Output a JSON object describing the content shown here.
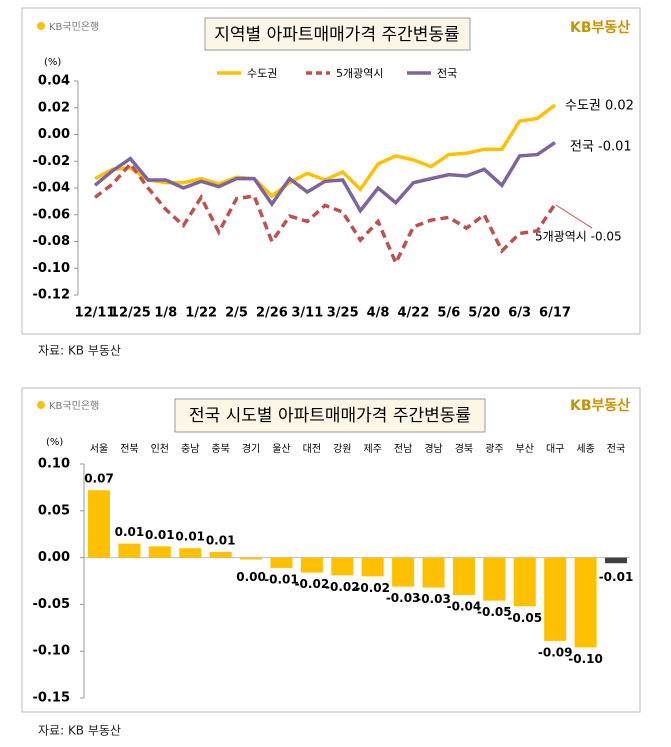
{
  "chart_data": [
    {
      "type": "line",
      "title": "지역별 아파트매매가격 주간변동률",
      "logo": "KB국민은행",
      "brand": "KB부동산",
      "y_unit": "(%)",
      "source": "자료: KB 부동산",
      "categories": [
        "12/11",
        null,
        "12/25",
        null,
        "1/8",
        null,
        "1/22",
        null,
        "2/5",
        null,
        "2/26",
        null,
        "3/11",
        null,
        "3/25",
        null,
        "4/8",
        null,
        "4/22",
        null,
        "5/6",
        null,
        "5/20",
        null,
        "6/3",
        null,
        "6/17"
      ],
      "series": [
        {
          "name": "수도권",
          "color": "#FFC000",
          "dash": false,
          "end_label": "수도권 0.02",
          "end_label_color": "#000000",
          "values": [
            -0.033,
            -0.026,
            -0.025,
            -0.034,
            -0.036,
            -0.036,
            -0.033,
            -0.037,
            -0.032,
            -0.033,
            -0.046,
            -0.036,
            -0.029,
            -0.034,
            -0.028,
            -0.041,
            -0.022,
            -0.016,
            -0.019,
            -0.024,
            -0.015,
            -0.014,
            -0.011,
            -0.011,
            0.01,
            0.012,
            0.022
          ]
        },
        {
          "name": "5개광역시",
          "color": "#C0504D",
          "dash": true,
          "end_label": "5개광역시 -0.05",
          "end_label_color": "#000000",
          "values": [
            -0.047,
            -0.037,
            -0.022,
            -0.04,
            -0.056,
            -0.068,
            -0.047,
            -0.073,
            -0.048,
            -0.046,
            -0.08,
            -0.061,
            -0.065,
            -0.053,
            -0.058,
            -0.079,
            -0.065,
            -0.096,
            -0.069,
            -0.064,
            -0.062,
            -0.07,
            -0.06,
            -0.087,
            -0.074,
            -0.072,
            -0.052
          ]
        },
        {
          "name": "전국",
          "color": "#7E649E",
          "dash": false,
          "end_label": "전국 -0.01",
          "end_label_color": "#7E649E",
          "values": [
            -0.038,
            -0.027,
            -0.018,
            -0.034,
            -0.034,
            -0.04,
            -0.035,
            -0.039,
            -0.033,
            -0.033,
            -0.052,
            -0.033,
            -0.043,
            -0.035,
            -0.034,
            -0.057,
            -0.04,
            -0.051,
            -0.036,
            -0.033,
            -0.03,
            -0.031,
            -0.026,
            -0.038,
            -0.016,
            -0.015,
            -0.006
          ]
        }
      ],
      "ylim": [
        -0.12,
        0.04
      ],
      "yticks": [
        {
          "value": 0.04,
          "label": "0.04"
        },
        {
          "value": 0.02,
          "label": "0.02"
        },
        {
          "value": 0,
          "label": "0.00"
        },
        {
          "value": -0.02,
          "label": "-0.02"
        },
        {
          "value": -0.04,
          "label": "-0.04"
        },
        {
          "value": -0.06,
          "label": "-0.06"
        },
        {
          "value": -0.08,
          "label": "-0.08"
        },
        {
          "value": -0.1,
          "label": "-0.10"
        },
        {
          "value": -0.12,
          "label": "-0.12"
        }
      ],
      "grid": false,
      "legend": "top"
    },
    {
      "type": "bar",
      "title": "전국 시도별 아파트매매가격 주간변동률",
      "logo": "KB국민은행",
      "brand": "KB부동산",
      "y_unit": "(%)",
      "source": "자료: KB 부동산",
      "categories": [
        "서울",
        "전북",
        "인천",
        "충남",
        "충북",
        "경기",
        "울산",
        "대전",
        "강원",
        "제주",
        "전남",
        "경남",
        "경북",
        "광주",
        "부산",
        "대구",
        "세종",
        "전국"
      ],
      "values": [
        0.072,
        0.015,
        0.012,
        0.01,
        0.006,
        -0.002,
        -0.011,
        -0.016,
        -0.019,
        -0.02,
        -0.031,
        -0.032,
        -0.04,
        -0.046,
        -0.052,
        -0.089,
        -0.096,
        -0.006
      ],
      "value_labels": [
        "0.07",
        "0.01",
        "0.01",
        "0.01",
        "0.01",
        "0.00",
        "-0.01",
        "-0.02",
        "-0.02",
        "-0.02",
        "-0.03",
        "-0.03",
        "-0.04",
        "-0.05",
        "-0.05",
        "-0.09",
        "-0.10",
        "-0.01"
      ],
      "colors": [
        "#FFC000",
        "#FFC000",
        "#FFC000",
        "#FFC000",
        "#FFC000",
        "#FFC000",
        "#FFC000",
        "#FFC000",
        "#FFC000",
        "#FFC000",
        "#FFC000",
        "#FFC000",
        "#FFC000",
        "#FFC000",
        "#FFC000",
        "#FFC000",
        "#FFC000",
        "#404040"
      ],
      "ylim": [
        -0.15,
        0.1
      ],
      "yticks": [
        {
          "value": 0.1,
          "label": "0.10"
        },
        {
          "value": 0.05,
          "label": "0.05"
        },
        {
          "value": 0,
          "label": "0.00"
        },
        {
          "value": -0.05,
          "label": "-0.05"
        },
        {
          "value": -0.1,
          "label": "-0.10"
        },
        {
          "value": -0.15,
          "label": "-0.15"
        }
      ],
      "grid": false
    }
  ]
}
